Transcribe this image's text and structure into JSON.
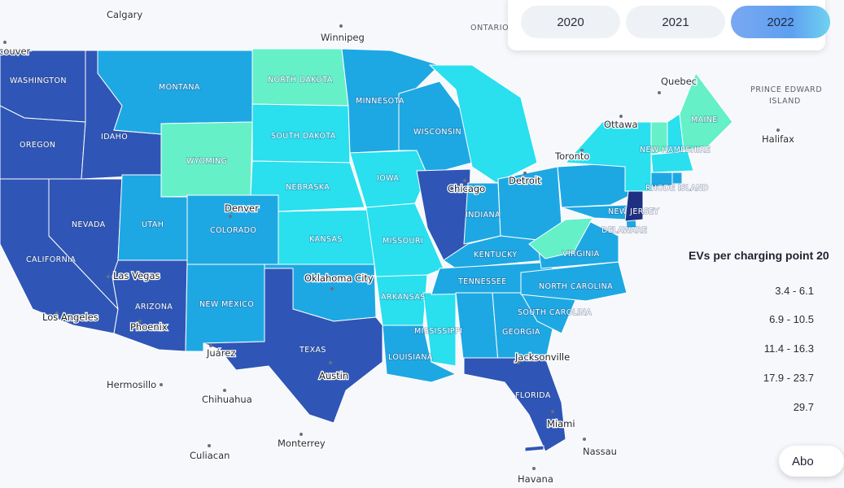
{
  "colors": {
    "c1": "#66f0c8",
    "c2": "#2adfee",
    "c3": "#1ea8e3",
    "c4": "#2f56b6",
    "c5": "#1f2f82",
    "land": "#f7f8fb"
  },
  "year_selector": {
    "years": [
      {
        "label": "2020",
        "active": false
      },
      {
        "label": "2021",
        "active": false
      },
      {
        "label": "2022",
        "active": true
      }
    ]
  },
  "legend": {
    "title": "EVs per charging point 20",
    "ranges": [
      "3.4 - 6.1",
      "6.9 - 10.5",
      "11.4 - 16.3",
      "17.9 - 23.7",
      "29.7"
    ]
  },
  "about_label": "Abo",
  "state_labels": {
    "washington": "WASHINGTON",
    "oregon": "OREGON",
    "california": "CALIFORNIA",
    "nevada": "NEVADA",
    "idaho": "IDAHO",
    "montana": "MONTANA",
    "wyoming": "WYOMING",
    "utah": "UTAH",
    "arizona": "ARIZONA",
    "colorado": "COLORADO",
    "new_mexico": "NEW MEXICO",
    "north_dakota": "NORTH DAKOTA",
    "south_dakota": "SOUTH DAKOTA",
    "nebraska": "NEBRASKA",
    "kansas": "KANSAS",
    "texas": "TEXAS",
    "minnesota": "MINNESOTA",
    "iowa": "IOWA",
    "missouri": "MISSOURI",
    "arkansas": "ARKANSAS",
    "louisiana": "LOUISIANA",
    "wisconsin": "WISCONSIN",
    "indiana": "INDIANA",
    "kentucky": "KENTUCKY",
    "tennessee": "TENNESSEE",
    "mississippi": "MISSISSIPPI",
    "georgia": "GEORGIA",
    "florida": "FLORIDA",
    "north_carolina": "NORTH CAROLINA",
    "south_carolina": "SOUTH CAROLINA",
    "virginia": "VIRGINIA",
    "delaware": "DELAWARE",
    "new_jersey": "NEW JERSEY",
    "rhode_island": "RHODE ISLAND",
    "new_hampshire": "NEW HAMPSHIRE",
    "maine": "MAINE"
  },
  "city_labels": {
    "calgary": "Calgary",
    "vancouver": "couver",
    "winnipeg": "Winnipeg",
    "ottawa": "Ottawa",
    "quebec": "Quebec",
    "toronto": "Toronto",
    "halifax": "Halifax",
    "detroit": "Detroit",
    "chicago": "Chicago",
    "denver": "Denver",
    "las_vegas": "Las Vegas",
    "los_angeles": "Los Angeles",
    "phoenix": "Phoenix",
    "oklahoma_city": "Oklahoma City",
    "austin": "Austin",
    "jacksonville": "Jacksonville",
    "miami": "Miami",
    "nassau": "Nassau",
    "havana": "Havana",
    "juarez": "Juárez",
    "chihuahua": "Chihuahua",
    "hermosillo": "Hermosillo",
    "culiacan": "Culiacan",
    "monterrey": "Monterrey"
  },
  "region_labels": {
    "ontario": "ONTARIO",
    "pei_line1": "PRINCE EDWARD",
    "pei_line2": "ISLAND"
  }
}
